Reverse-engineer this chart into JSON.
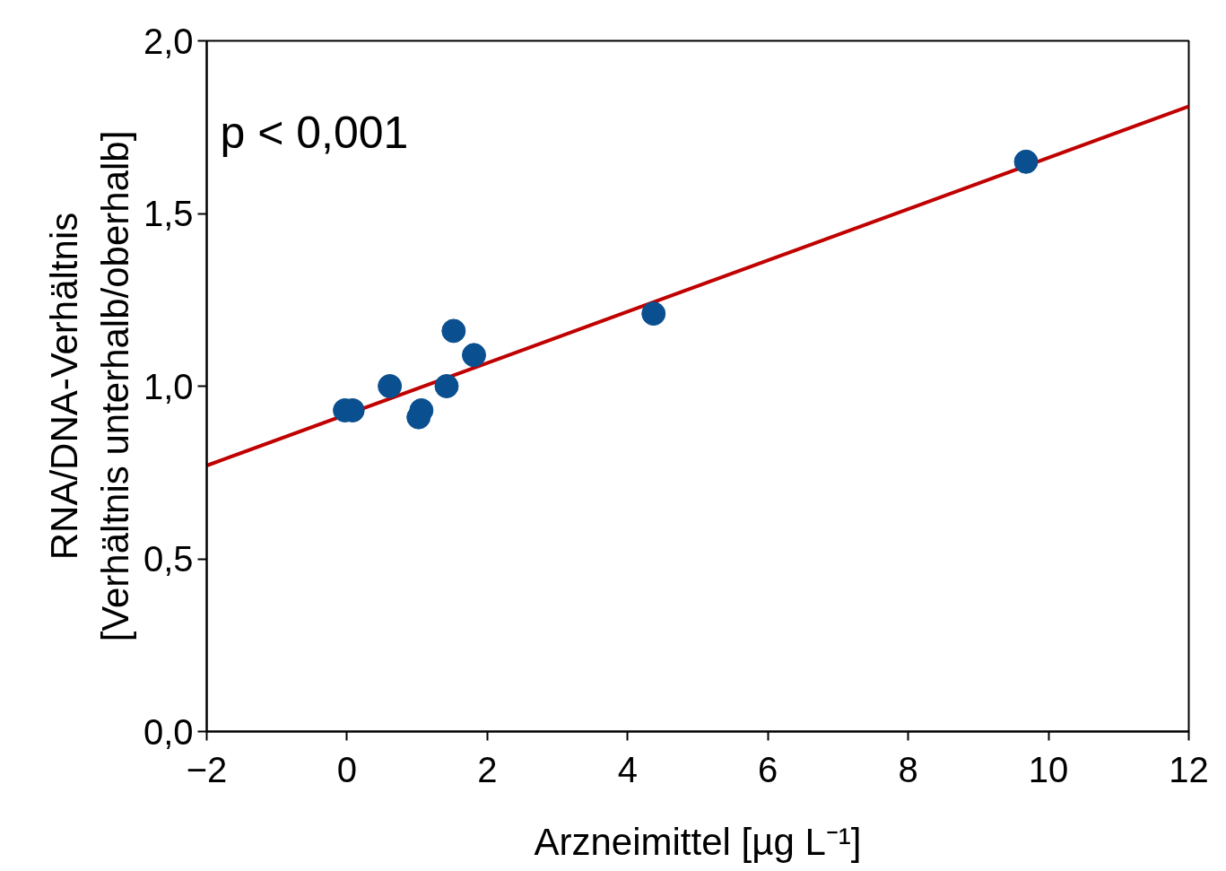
{
  "chart_data": {
    "type": "scatter",
    "xlabel": "Arzneimittel [µg L⁻¹]",
    "ylabel": "RNA/DNA-Verhältnis\n[Verhältnis unterhalb/oberhalb]",
    "annotations": [
      "p < 0,001"
    ],
    "xlim": [
      -2,
      12
    ],
    "xticks": [
      -2,
      0,
      2,
      4,
      6,
      8,
      10,
      12
    ],
    "ylim": [
      0,
      2
    ],
    "yticks": [
      {
        "value": 0,
        "label": "0,0"
      },
      {
        "value": 0.5,
        "label": "0,5"
      },
      {
        "value": 1,
        "label": "1,0"
      },
      {
        "value": 1.5,
        "label": "1,5"
      },
      {
        "value": 2,
        "label": "2,0"
      }
    ],
    "grid": false,
    "series": [
      {
        "type": "line",
        "color": "#c00000",
        "x": [
          -2,
          12
        ],
        "values": [
          0.77,
          1.81
        ]
      },
      {
        "marker": "circle",
        "color": "#0a4f8f",
        "x": [
          -0.03,
          0.08,
          0.61,
          1.02,
          1.06,
          1.42,
          1.52,
          1.81,
          4.37,
          9.68
        ],
        "values": [
          0.93,
          0.93,
          1.0,
          0.91,
          0.93,
          1.0,
          1.16,
          1.09,
          1.21,
          1.65
        ]
      }
    ]
  }
}
